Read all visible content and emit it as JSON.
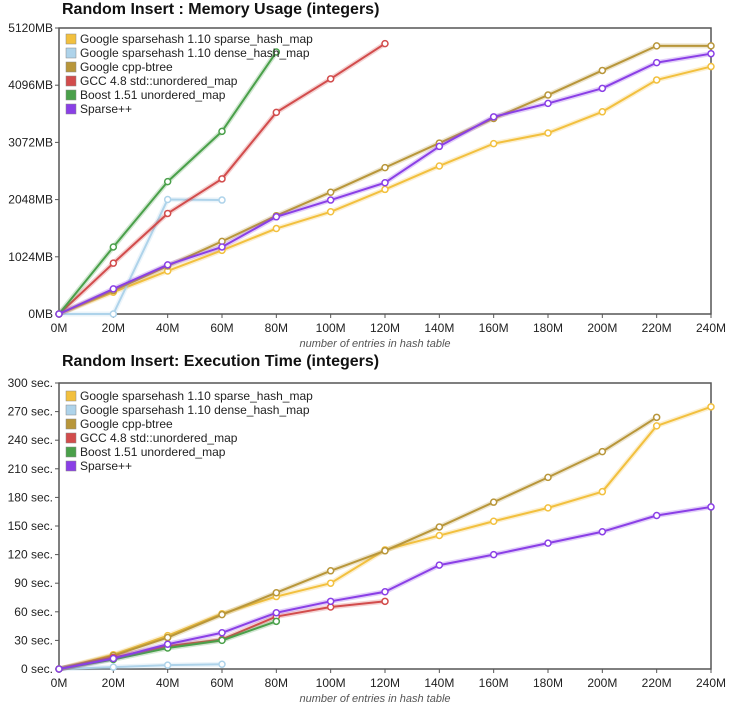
{
  "colors": {
    "sparse_hash_map": "#f2c03e",
    "dense_hash_map": "#aed3ea",
    "cpp_btree": "#b8963a",
    "std_unordered_map": "#d24c4c",
    "boost_unordered_map": "#4aa04a",
    "sparsepp": "#8a3fe6"
  },
  "chart_data": [
    {
      "type": "line",
      "title": "Random Insert : Memory Usage (integers)",
      "xlabel": "number of entries in hash table",
      "ylabel": "",
      "x": [
        0,
        20,
        40,
        60,
        80,
        100,
        120,
        140,
        160,
        180,
        200,
        220,
        240
      ],
      "x_tick_labels": [
        "0M",
        "20M",
        "40M",
        "60M",
        "80M",
        "100M",
        "120M",
        "140M",
        "160M",
        "180M",
        "200M",
        "220M",
        "240M"
      ],
      "xlim": [
        0,
        240
      ],
      "ylim": [
        0,
        5120
      ],
      "y_ticks": [
        0,
        1024,
        2048,
        3072,
        4096,
        5120
      ],
      "y_tick_labels": [
        "0MB",
        "1024MB",
        "2048MB",
        "3072MB",
        "4096MB",
        "5120MB"
      ],
      "grid": false,
      "legend_position": "top-left",
      "series": [
        {
          "name": "Google sparsehash 1.10 sparse_hash_map",
          "color_key": "sparse_hash_map",
          "x": [
            0,
            20,
            40,
            60,
            80,
            100,
            120,
            140,
            160,
            180,
            200,
            220,
            240
          ],
          "values": [
            0,
            390,
            770,
            1140,
            1530,
            1830,
            2230,
            2650,
            3050,
            3240,
            3620,
            4190,
            4430
          ]
        },
        {
          "name": "Google sparsehash 1.10 dense_hash_map",
          "color_key": "dense_hash_map",
          "x": [
            0,
            20,
            40,
            60
          ],
          "values": [
            0,
            0,
            2050,
            2040
          ]
        },
        {
          "name": "Google cpp-btree",
          "color_key": "cpp_btree",
          "x": [
            0,
            20,
            40,
            60,
            80,
            100,
            120,
            140,
            160,
            180,
            200,
            220,
            240
          ],
          "values": [
            0,
            420,
            860,
            1300,
            1760,
            2180,
            2620,
            3060,
            3500,
            3920,
            4360,
            4800,
            4800
          ]
        },
        {
          "name": "GCC 4.8 std::unordered_map",
          "color_key": "std_unordered_map",
          "x": [
            0,
            20,
            40,
            60,
            80,
            100,
            120
          ],
          "values": [
            0,
            910,
            1800,
            2420,
            3610,
            4210,
            4840
          ]
        },
        {
          "name": "Boost 1.51 unordered_map",
          "color_key": "boost_unordered_map",
          "x": [
            0,
            20,
            40,
            60,
            80
          ],
          "values": [
            0,
            1200,
            2370,
            3270,
            4690
          ]
        },
        {
          "name": "Sparse++",
          "color_key": "sparsepp",
          "x": [
            0,
            20,
            40,
            60,
            80,
            100,
            120,
            140,
            160,
            180,
            200,
            220,
            240
          ],
          "values": [
            0,
            450,
            880,
            1200,
            1740,
            2040,
            2350,
            3000,
            3530,
            3770,
            4040,
            4500,
            4660
          ]
        }
      ]
    },
    {
      "type": "line",
      "title": "Random Insert: Execution Time (integers)",
      "xlabel": "number of entries in hash table",
      "ylabel": "",
      "x": [
        0,
        20,
        40,
        60,
        80,
        100,
        120,
        140,
        160,
        180,
        200,
        220,
        240
      ],
      "x_tick_labels": [
        "0M",
        "20M",
        "40M",
        "60M",
        "80M",
        "100M",
        "120M",
        "140M",
        "160M",
        "180M",
        "200M",
        "220M",
        "240M"
      ],
      "xlim": [
        0,
        240
      ],
      "ylim": [
        0,
        300
      ],
      "y_ticks": [
        0,
        30,
        60,
        90,
        120,
        150,
        180,
        210,
        240,
        270,
        300
      ],
      "y_tick_labels": [
        "0 sec.",
        "30 sec.",
        "60 sec.",
        "90 sec.",
        "120 sec.",
        "150 sec.",
        "180 sec.",
        "210 sec.",
        "240 sec.",
        "270 sec.",
        "300 sec."
      ],
      "grid": false,
      "legend_position": "top-left",
      "series": [
        {
          "name": "Google sparsehash 1.10 sparse_hash_map",
          "color_key": "sparse_hash_map",
          "x": [
            0,
            20,
            40,
            60,
            80,
            100,
            120,
            140,
            160,
            180,
            200,
            220,
            240
          ],
          "values": [
            0,
            15,
            35,
            58,
            76,
            90,
            125,
            140,
            155,
            169,
            186,
            255,
            275
          ]
        },
        {
          "name": "Google sparsehash 1.10 dense_hash_map",
          "color_key": "dense_hash_map",
          "x": [
            0,
            20,
            40,
            60
          ],
          "values": [
            0,
            2,
            4,
            5
          ]
        },
        {
          "name": "Google cpp-btree",
          "color_key": "cpp_btree",
          "x": [
            0,
            20,
            40,
            60,
            80,
            100,
            120,
            140,
            160,
            180,
            200,
            220
          ],
          "values": [
            0,
            14,
            33,
            57,
            80,
            103,
            124,
            149,
            175,
            201,
            228,
            264
          ]
        },
        {
          "name": "GCC 4.8 std::unordered_map",
          "color_key": "std_unordered_map",
          "x": [
            0,
            20,
            40,
            60,
            80,
            100,
            120
          ],
          "values": [
            0,
            12,
            24,
            31,
            55,
            65,
            71
          ]
        },
        {
          "name": "Boost 1.51 unordered_map",
          "color_key": "boost_unordered_map",
          "x": [
            0,
            20,
            40,
            60,
            80
          ],
          "values": [
            0,
            10,
            22,
            30,
            50
          ]
        },
        {
          "name": "Sparse++",
          "color_key": "sparsepp",
          "x": [
            0,
            20,
            40,
            60,
            80,
            100,
            120,
            140,
            160,
            180,
            200,
            220,
            240
          ],
          "values": [
            0,
            11,
            26,
            38,
            59,
            71,
            81,
            109,
            120,
            132,
            144,
            161,
            170
          ]
        }
      ]
    }
  ]
}
